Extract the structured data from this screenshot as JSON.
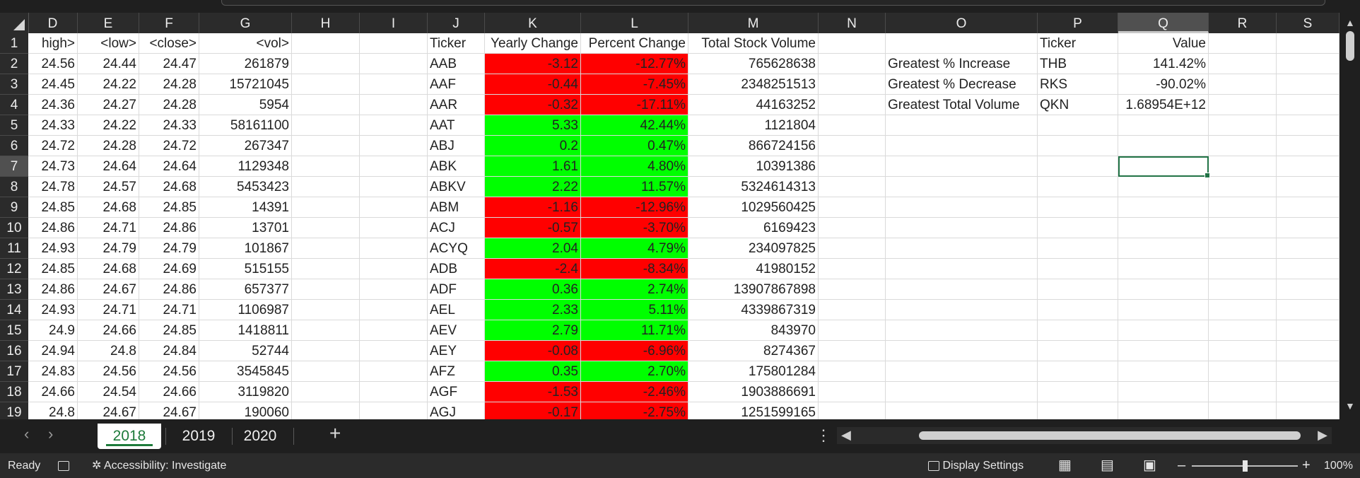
{
  "columns": [
    "D",
    "E",
    "F",
    "G",
    "H",
    "I",
    "J",
    "K",
    "L",
    "M",
    "N",
    "O",
    "P",
    "Q",
    "R",
    "S"
  ],
  "selected_column": "Q",
  "rows": [
    "1",
    "2",
    "3",
    "4",
    "5",
    "6",
    "7",
    "8",
    "9",
    "10",
    "11",
    "12",
    "13",
    "14",
    "15",
    "16",
    "17",
    "18",
    "19"
  ],
  "selected_row": "7",
  "headers": {
    "D": "high>",
    "E": "<low>",
    "F": "<close>",
    "G": "<vol>",
    "J": "Ticker",
    "K": "Yearly Change",
    "L": "Percent Change",
    "M": "Total Stock Volume",
    "P": "Ticker",
    "Q": "Value"
  },
  "data_rows": [
    {
      "D": "24.56",
      "E": "24.44",
      "F": "24.47",
      "G": "261879",
      "J": "AAB",
      "K": "-3.12",
      "L": "-12.77%",
      "M": "765628638",
      "status": "negative"
    },
    {
      "D": "24.45",
      "E": "24.22",
      "F": "24.28",
      "G": "15721045",
      "J": "AAF",
      "K": "-0.44",
      "L": "-7.45%",
      "M": "2348251513",
      "status": "negative"
    },
    {
      "D": "24.36",
      "E": "24.27",
      "F": "24.28",
      "G": "5954",
      "J": "AAR",
      "K": "-0.32",
      "L": "-17.11%",
      "M": "44163252",
      "status": "negative"
    },
    {
      "D": "24.33",
      "E": "24.22",
      "F": "24.33",
      "G": "58161100",
      "J": "AAT",
      "K": "5.33",
      "L": "42.44%",
      "M": "1121804",
      "status": "positive"
    },
    {
      "D": "24.72",
      "E": "24.28",
      "F": "24.72",
      "G": "267347",
      "J": "ABJ",
      "K": "0.2",
      "L": "0.47%",
      "M": "866724156",
      "status": "positive"
    },
    {
      "D": "24.73",
      "E": "24.64",
      "F": "24.64",
      "G": "1129348",
      "J": "ABK",
      "K": "1.61",
      "L": "4.80%",
      "M": "10391386",
      "status": "positive"
    },
    {
      "D": "24.78",
      "E": "24.57",
      "F": "24.68",
      "G": "5453423",
      "J": "ABKV",
      "K": "2.22",
      "L": "11.57%",
      "M": "5324614313",
      "status": "positive"
    },
    {
      "D": "24.85",
      "E": "24.68",
      "F": "24.85",
      "G": "14391",
      "J": "ABM",
      "K": "-1.16",
      "L": "-12.96%",
      "M": "1029560425",
      "status": "negative"
    },
    {
      "D": "24.86",
      "E": "24.71",
      "F": "24.86",
      "G": "13701",
      "J": "ACJ",
      "K": "-0.57",
      "L": "-3.70%",
      "M": "6169423",
      "status": "negative"
    },
    {
      "D": "24.93",
      "E": "24.79",
      "F": "24.79",
      "G": "101867",
      "J": "ACYQ",
      "K": "2.04",
      "L": "4.79%",
      "M": "234097825",
      "status": "positive"
    },
    {
      "D": "24.85",
      "E": "24.68",
      "F": "24.69",
      "G": "515155",
      "J": "ADB",
      "K": "-2.4",
      "L": "-8.34%",
      "M": "41980152",
      "status": "negative"
    },
    {
      "D": "24.86",
      "E": "24.67",
      "F": "24.86",
      "G": "657377",
      "J": "ADF",
      "K": "0.36",
      "L": "2.74%",
      "M": "13907867898",
      "status": "positive"
    },
    {
      "D": "24.93",
      "E": "24.71",
      "F": "24.71",
      "G": "1106987",
      "J": "AEL",
      "K": "2.33",
      "L": "5.11%",
      "M": "4339867319",
      "status": "positive"
    },
    {
      "D": "24.9",
      "E": "24.66",
      "F": "24.85",
      "G": "1418811",
      "J": "AEV",
      "K": "2.79",
      "L": "11.71%",
      "M": "843970",
      "status": "positive"
    },
    {
      "D": "24.94",
      "E": "24.8",
      "F": "24.84",
      "G": "52744",
      "J": "AEY",
      "K": "-0.08",
      "L": "-6.96%",
      "M": "8274367",
      "status": "negative"
    },
    {
      "D": "24.83",
      "E": "24.56",
      "F": "24.56",
      "G": "3545845",
      "J": "AFZ",
      "K": "0.35",
      "L": "2.70%",
      "M": "175801284",
      "status": "positive"
    },
    {
      "D": "24.66",
      "E": "24.54",
      "F": "24.66",
      "G": "3119820",
      "J": "AGF",
      "K": "-1.53",
      "L": "-2.46%",
      "M": "1903886691",
      "status": "negative"
    },
    {
      "D": "24.8",
      "E": "24.67",
      "F": "24.67",
      "G": "190060",
      "J": "AGJ",
      "K": "-0.17",
      "L": "-2.75%",
      "M": "1251599165",
      "status": "negative"
    }
  ],
  "summary": [
    {
      "label": "Greatest % Increase",
      "ticker": "THB",
      "value": "141.42%"
    },
    {
      "label": "Greatest % Decrease",
      "ticker": "RKS",
      "value": "-90.02%"
    },
    {
      "label": "Greatest Total Volume",
      "ticker": "QKN",
      "value": "1.68954E+12"
    }
  ],
  "sheet_tabs": [
    {
      "label": "2018",
      "active": true
    },
    {
      "label": "2019",
      "active": false
    },
    {
      "label": "2020",
      "active": false
    }
  ],
  "status_bar": {
    "ready": "Ready",
    "accessibility": "Accessibility: Investigate",
    "display_settings": "Display Settings",
    "zoom": "100%"
  },
  "colors": {
    "positive": "#00ff00",
    "negative": "#ff0000",
    "accent": "#217346"
  }
}
